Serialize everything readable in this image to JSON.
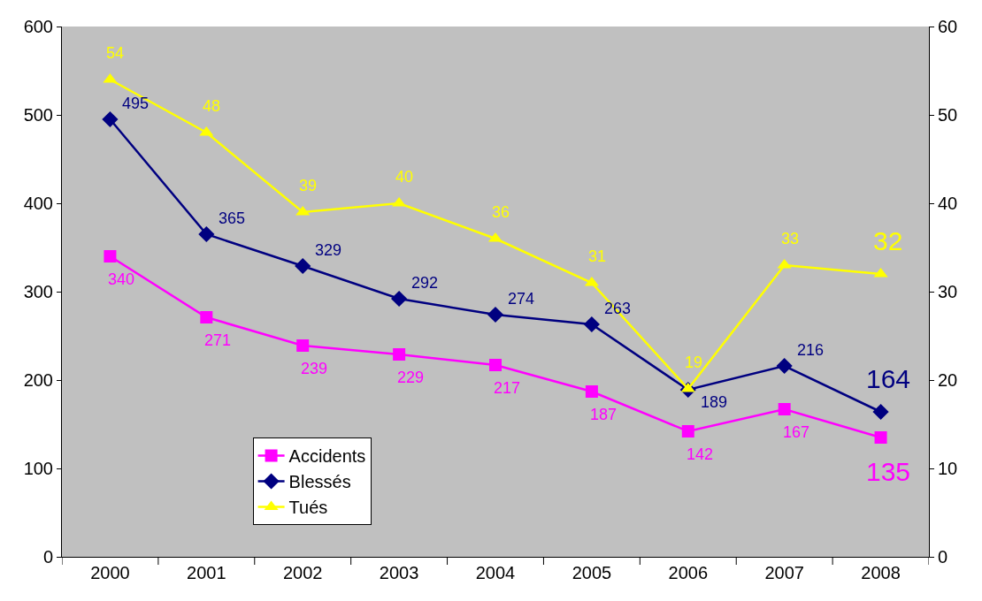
{
  "chart_data": {
    "type": "line",
    "categories": [
      "2000",
      "2001",
      "2002",
      "2003",
      "2004",
      "2005",
      "2006",
      "2007",
      "2008"
    ],
    "series": [
      {
        "name": "Accidents",
        "color": "#ff00ff",
        "marker": "square",
        "values": [
          340,
          271,
          239,
          229,
          217,
          187,
          142,
          167,
          135
        ]
      },
      {
        "name": "Blessés",
        "color": "#000080",
        "marker": "diamond",
        "values": [
          495,
          365,
          329,
          292,
          274,
          263,
          189,
          216,
          164
        ]
      },
      {
        "name": "Tués",
        "color": "#ffff00",
        "marker": "triangle",
        "axis": "y2",
        "values": [
          54,
          48,
          39,
          40,
          36,
          31,
          19,
          33,
          32
        ]
      }
    ],
    "ylim": [
      0,
      600
    ],
    "yticks": [
      0,
      100,
      200,
      300,
      400,
      500,
      600
    ],
    "y2lim": [
      0,
      60
    ],
    "y2ticks": [
      0,
      10,
      20,
      30,
      40,
      50,
      60
    ],
    "data_labels": true,
    "legend": "bottom left",
    "grid": false
  }
}
